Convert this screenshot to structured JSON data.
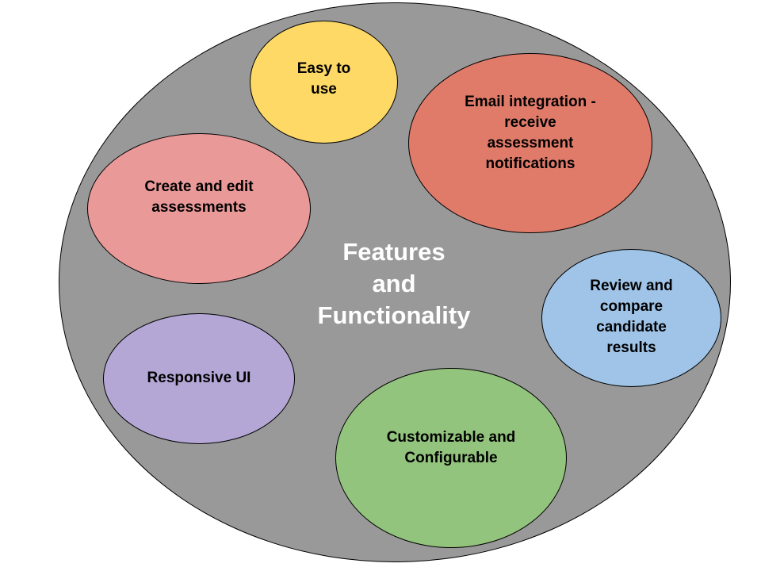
{
  "diagram": {
    "center": {
      "label": "Features\nand\nFunctionality",
      "text_color": "#ffffff",
      "fill": "#999999"
    },
    "bubbles": [
      {
        "id": "easy",
        "label": "Easy to\nuse",
        "fill": "#fed966"
      },
      {
        "id": "email",
        "label": "Email integration -\nreceive\nassessment\nnotifications",
        "fill": "#e07b6a"
      },
      {
        "id": "create",
        "label": "Create and edit\nassessments",
        "fill": "#ea9999"
      },
      {
        "id": "review",
        "label": "Review and\ncompare\ncandidate\nresults",
        "fill": "#9fc4e8"
      },
      {
        "id": "responsive",
        "label": "Responsive UI",
        "fill": "#b4a7d6"
      },
      {
        "id": "custom",
        "label": "Customizable and\nConfigurable",
        "fill": "#93c47d"
      }
    ]
  }
}
